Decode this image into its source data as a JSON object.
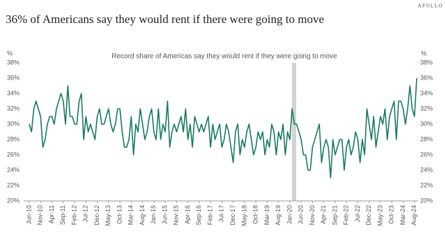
{
  "chart_data": {
    "type": "line",
    "title": "36% of Americans say they would rent if there were going to move",
    "brand": "APOLLO",
    "annotation": "Record share of Americas say they would rent if they were going to move",
    "y_unit": "%",
    "color": "#167a5c",
    "categories": [
      "Jun-10",
      null,
      null,
      null,
      null,
      "Nov-10",
      null,
      null,
      null,
      null,
      "Apr-11",
      null,
      null,
      null,
      null,
      "Sep-11",
      null,
      null,
      null,
      null,
      "Feb-12",
      null,
      null,
      null,
      null,
      "Jul-12",
      null,
      null,
      null,
      null,
      "Dec-12",
      null,
      null,
      null,
      null,
      "May-13",
      null,
      null,
      null,
      null,
      "Oct-13",
      null,
      null,
      null,
      null,
      "Mar-14",
      null,
      null,
      null,
      null,
      "Aug-14",
      null,
      null,
      null,
      null,
      "Jan-15",
      null,
      null,
      null,
      null,
      "Jun-15",
      null,
      null,
      null,
      null,
      "Nov-15",
      null,
      null,
      null,
      null,
      "Apr-16",
      null,
      null,
      null,
      null,
      "Sep-16",
      null,
      null,
      null,
      null,
      "Feb-17",
      null,
      null,
      null,
      null,
      "Jul-17",
      null,
      null,
      null,
      null,
      "Dec-17",
      null,
      null,
      null,
      null,
      "May-18",
      null,
      null,
      null,
      null,
      "Oct-18",
      null,
      null,
      null,
      null,
      "Mar-19",
      null,
      null,
      null,
      null,
      "Aug-19",
      null,
      null,
      null,
      null,
      "Jan-20",
      null,
      null,
      null,
      null,
      "Jun-20",
      null,
      null,
      null,
      null,
      "Nov-20",
      null,
      null,
      null,
      null,
      "Apr-21",
      null,
      null,
      null,
      null,
      "Sep-21",
      null,
      null,
      null,
      null,
      "Feb-22",
      null,
      null,
      null,
      null,
      "Jul-22",
      null,
      null,
      null,
      null,
      "Dec-22",
      null,
      null,
      null,
      null,
      "May-23",
      null,
      null,
      null,
      null,
      "Oct-23",
      null,
      null,
      null,
      null,
      "Mar-24",
      null,
      null,
      null,
      null,
      "Aug-24",
      null
    ],
    "values": [
      30,
      29,
      32,
      33,
      32,
      31,
      27,
      28,
      30,
      31,
      31,
      30,
      32,
      33,
      34,
      33,
      30,
      35,
      31,
      31,
      30,
      30,
      33,
      34,
      28,
      31,
      29,
      30,
      29,
      28,
      31,
      32,
      30,
      30,
      31,
      32,
      30,
      29,
      30,
      32,
      32,
      29,
      27,
      27,
      28,
      31,
      26,
      30,
      29,
      32,
      30,
      28,
      29,
      31,
      32,
      29,
      28,
      32,
      28,
      30,
      29,
      33,
      27,
      29,
      30,
      29,
      30,
      31,
      29,
      32,
      28,
      30,
      27,
      31,
      30,
      29,
      30,
      29,
      30,
      31,
      27,
      30,
      28,
      29,
      30,
      27,
      28,
      30,
      29,
      27,
      25,
      29,
      30,
      26,
      28,
      27,
      29,
      30,
      28,
      26,
      27,
      29,
      28,
      29,
      26,
      28,
      27,
      30,
      29,
      26,
      29,
      28,
      30,
      26,
      29,
      28,
      32,
      30,
      30,
      29,
      28,
      26,
      26,
      24,
      24,
      27,
      28,
      29,
      30,
      25,
      27,
      28,
      27,
      23,
      28,
      26,
      27,
      28,
      28,
      24,
      27,
      28,
      26,
      27,
      29,
      28,
      25,
      28,
      26,
      32,
      30,
      28,
      31,
      27,
      29,
      31,
      30,
      32,
      28,
      31,
      32,
      33,
      28,
      33,
      33,
      32,
      30,
      32,
      35,
      32,
      31,
      36
    ],
    "ylim": [
      20,
      38
    ],
    "yticks": [
      {
        "value": 20,
        "label": "20%"
      },
      {
        "value": 22,
        "label": "22%"
      },
      {
        "value": 24,
        "label": "24%"
      },
      {
        "value": 26,
        "label": "26%"
      },
      {
        "value": 28,
        "label": "28%"
      },
      {
        "value": 30,
        "label": "30%"
      },
      {
        "value": 32,
        "label": "32%"
      },
      {
        "value": 34,
        "label": "34%"
      },
      {
        "value": 36,
        "label": "36%"
      },
      {
        "value": 38,
        "label": "38%"
      }
    ],
    "y2lim": [
      20,
      38
    ],
    "y2ticks": [
      {
        "value": 20,
        "label": "20%"
      },
      {
        "value": 22,
        "label": "22%"
      },
      {
        "value": 24,
        "label": "24%"
      },
      {
        "value": 26,
        "label": "26%"
      },
      {
        "value": 28,
        "label": "28%"
      },
      {
        "value": 30,
        "label": "30%"
      },
      {
        "value": 32,
        "label": "32%"
      },
      {
        "value": 34,
        "label": "34%"
      },
      {
        "value": 36,
        "label": "36%"
      },
      {
        "value": 38,
        "label": "38%"
      }
    ]
  }
}
